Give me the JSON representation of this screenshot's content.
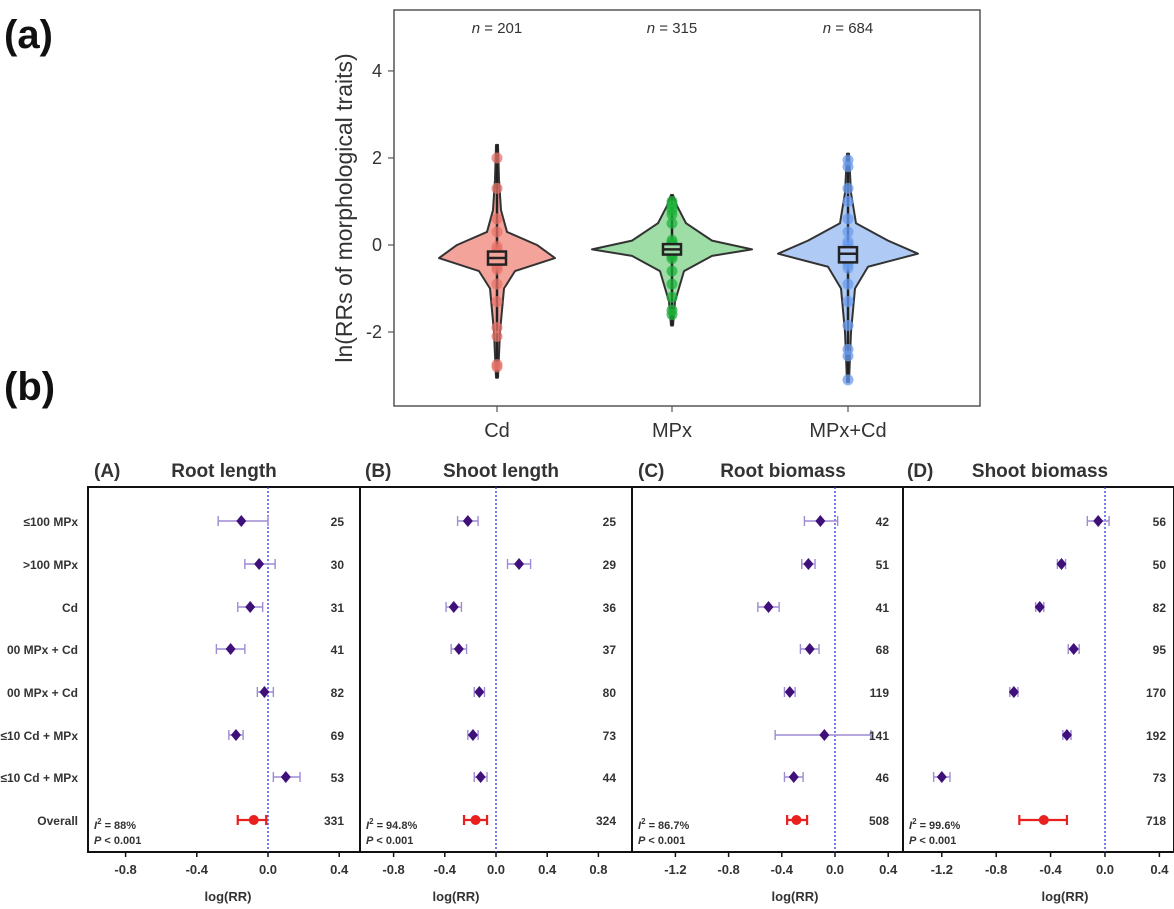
{
  "chart_data": [
    {
      "panel": "(a)",
      "type": "violin",
      "ylabel": "ln(RRs of morphological traits)",
      "categories": [
        "Cd",
        "MPx",
        "MPx+Cd"
      ],
      "n_labels": [
        "n = 201",
        "n = 315",
        "n = 684"
      ],
      "n_prefix": "n",
      "n_values": [
        "= 201",
        "= 315",
        "= 684"
      ],
      "ylim": [
        -3.7,
        5.4
      ],
      "yticks": [
        -2,
        0,
        2,
        4
      ],
      "colors": [
        "#F4A39B",
        "#9EDEA6",
        "#AFCBF5"
      ],
      "point_colors": [
        "#E7736A",
        "#1DB33B",
        "#6A9CF0"
      ],
      "series": [
        {
          "name": "Cd",
          "median": -0.3,
          "q1": -0.45,
          "q3": -0.15,
          "min": -3.05,
          "max": 2.3,
          "points": [
            2.0,
            1.3,
            0.6,
            0.3,
            -0.9,
            -1.3,
            -1.9,
            -2.1,
            -2.75,
            -2.8
          ]
        },
        {
          "name": "MPx",
          "median": -0.1,
          "q1": -0.22,
          "q3": 0.02,
          "min": -1.85,
          "max": 1.15,
          "points": [
            1.0,
            0.9,
            0.8,
            0.7,
            0.5,
            -0.6,
            -0.9,
            -1.2,
            -1.5,
            -1.6
          ]
        },
        {
          "name": "MPx+Cd",
          "median": -0.2,
          "q1": -0.4,
          "q3": -0.05,
          "min": -3.15,
          "max": 2.1,
          "points": [
            1.95,
            1.8,
            1.3,
            1.0,
            0.6,
            0.3,
            -0.9,
            -1.3,
            -1.85,
            -2.4,
            -2.55,
            -3.1
          ]
        }
      ]
    },
    {
      "panel": "(A)",
      "title": "Root length",
      "type": "forest",
      "xlabel": "log(RR)",
      "xlim": [
        -1.0,
        0.45
      ],
      "xticks": [
        "-0.8",
        "-0.4",
        "0.0",
        "0.4"
      ],
      "est": [
        -0.15,
        -0.05,
        -0.1,
        -0.21,
        -0.02,
        -0.18,
        0.1,
        -0.08
      ],
      "lo": [
        -0.28,
        -0.13,
        -0.17,
        -0.29,
        -0.06,
        -0.22,
        0.03,
        -0.17
      ],
      "hi": [
        0.0,
        0.04,
        -0.03,
        -0.13,
        0.03,
        -0.14,
        0.18,
        -0.01
      ],
      "counts": [
        "25",
        "30",
        "31",
        "41",
        "82",
        "69",
        "53",
        "331"
      ],
      "i2": "= 88%",
      "p": "< 0.001"
    },
    {
      "panel": "(B)",
      "title": "Shoot length",
      "type": "forest",
      "xlabel": "log(RR)",
      "xlim": [
        -1.0,
        0.9
      ],
      "xticks": [
        "-0.8",
        "-0.4",
        "0.0",
        "0.4",
        "0.8"
      ],
      "est": [
        -0.22,
        0.18,
        -0.33,
        -0.29,
        -0.13,
        -0.18,
        -0.12,
        -0.16
      ],
      "lo": [
        -0.3,
        0.09,
        -0.39,
        -0.35,
        -0.17,
        -0.22,
        -0.17,
        -0.25
      ],
      "hi": [
        -0.14,
        0.27,
        -0.27,
        -0.23,
        -0.09,
        -0.14,
        -0.07,
        -0.07
      ],
      "counts": [
        "25",
        "29",
        "36",
        "37",
        "80",
        "73",
        "44",
        "324"
      ],
      "i2": "= 94.8%",
      "p": "< 0.001"
    },
    {
      "panel": "(C)",
      "title": "Root biomass",
      "type": "forest",
      "xlabel": "log(RR)",
      "xlim": [
        -1.55,
        0.55
      ],
      "xticks": [
        "-1.2",
        "-0.8",
        "-0.4",
        "0.0",
        "0.4"
      ],
      "est": [
        -0.11,
        -0.2,
        -0.5,
        -0.19,
        -0.34,
        -0.08,
        -0.31,
        -0.29
      ],
      "lo": [
        -0.23,
        -0.25,
        -0.58,
        -0.26,
        -0.38,
        -0.45,
        -0.38,
        -0.36
      ],
      "hi": [
        0.02,
        -0.15,
        -0.42,
        -0.12,
        -0.3,
        0.27,
        -0.24,
        -0.21
      ],
      "counts": [
        "42",
        "51",
        "41",
        "68",
        "119",
        "141",
        "46",
        "508"
      ],
      "i2": "= 86.7%",
      "p": "< 0.001"
    },
    {
      "panel": "(D)",
      "title": "Shoot biomass",
      "type": "forest",
      "xlabel": "log(RR)",
      "xlim": [
        -1.5,
        0.5
      ],
      "xticks": [
        "-1.2",
        "-0.8",
        "-0.4",
        "0.0",
        "0.4"
      ],
      "est": [
        -0.05,
        -0.32,
        -0.48,
        -0.23,
        -0.67,
        -0.28,
        -1.2,
        -0.45
      ],
      "lo": [
        -0.13,
        -0.35,
        -0.51,
        -0.27,
        -0.7,
        -0.31,
        -1.26,
        -0.63
      ],
      "hi": [
        0.03,
        -0.29,
        -0.45,
        -0.19,
        -0.64,
        -0.25,
        -1.14,
        -0.28
      ],
      "counts": [
        "56",
        "50",
        "82",
        "95",
        "170",
        "192",
        "73",
        "718"
      ],
      "i2": "= 99.6%",
      "p": "< 0.001"
    }
  ],
  "figure": {
    "label_a": "(a)",
    "label_b": "(b)",
    "row_labels": [
      "≤100 MPx",
      ">100 MPx",
      "Cd",
      "00 MPx + Cd",
      "00 MPx + Cd",
      "≤10 Cd + MPx",
      "≤10 Cd + MPx",
      "Overall"
    ],
    "i2_symbol": "I",
    "i2_sup": "2",
    "p_symbol": "P",
    "colors": {
      "point": "#3F0F7A",
      "ci": "#9D8CD3",
      "overall": "#E8201F",
      "zero_line": "#2A3BE0"
    }
  }
}
